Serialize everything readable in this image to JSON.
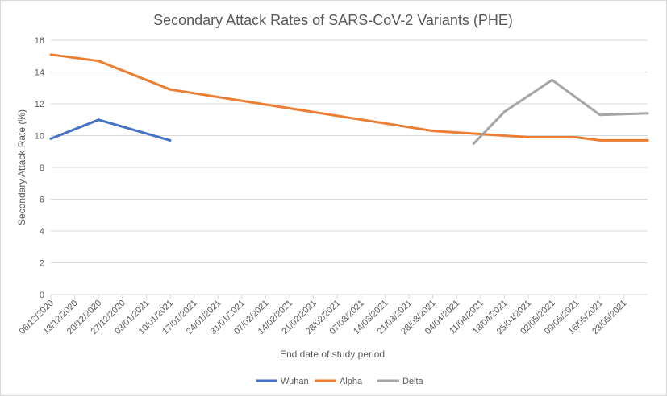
{
  "chart_data": {
    "type": "line",
    "title": "Secondary Attack Rates of SARS-CoV-2 Variants (PHE)",
    "xlabel": "End date of study period",
    "ylabel": "Secondary Attack Rate (%)",
    "ylim": [
      0,
      16
    ],
    "yticks": [
      "0",
      "2",
      "4",
      "6",
      "8",
      "10",
      "12",
      "14",
      "16"
    ],
    "categories": [
      "06/12/2020",
      "13/12/2020",
      "20/12/2020",
      "27/12/2020",
      "03/01/2021",
      "10/01/2021",
      "17/01/2021",
      "24/01/2021",
      "31/01/2021",
      "07/02/2021",
      "14/02/2021",
      "21/02/2021",
      "28/02/2021",
      "07/03/2021",
      "14/03/2021",
      "21/03/2021",
      "28/03/2021",
      "04/04/2021",
      "11/04/2021",
      "18/04/2021",
      "25/04/2021",
      "02/05/2021",
      "09/05/2021",
      "16/05/2021",
      "23/05/2021"
    ],
    "grid": "horizontal",
    "legend_position": "bottom",
    "series": [
      {
        "name": "Wuhan",
        "color": "#4472C4",
        "points": [
          [
            "06/12/2020",
            9.8
          ],
          [
            "20/12/2020",
            11.0
          ],
          [
            "10/01/2021",
            9.7
          ]
        ]
      },
      {
        "name": "Alpha",
        "color": "#ED7D31",
        "points": [
          [
            "06/12/2020",
            15.1
          ],
          [
            "20/12/2020",
            14.7
          ],
          [
            "10/01/2021",
            12.9
          ],
          [
            "28/03/2021",
            10.3
          ],
          [
            "18/04/2021",
            10.0
          ],
          [
            "25/04/2021",
            9.9
          ],
          [
            "09/05/2021",
            9.9
          ],
          [
            "16/05/2021",
            9.7
          ],
          [
            "30/05/2021",
            9.7
          ]
        ]
      },
      {
        "name": "Delta",
        "color": "#A5A5A5",
        "points": [
          [
            "09/04/2021",
            9.5
          ],
          [
            "18/04/2021",
            11.5
          ],
          [
            "25/04/2021",
            12.5
          ],
          [
            "02/05/2021",
            13.5
          ],
          [
            "09/05/2021",
            12.4
          ],
          [
            "16/05/2021",
            11.3
          ],
          [
            "30/05/2021",
            11.4
          ]
        ]
      }
    ]
  }
}
